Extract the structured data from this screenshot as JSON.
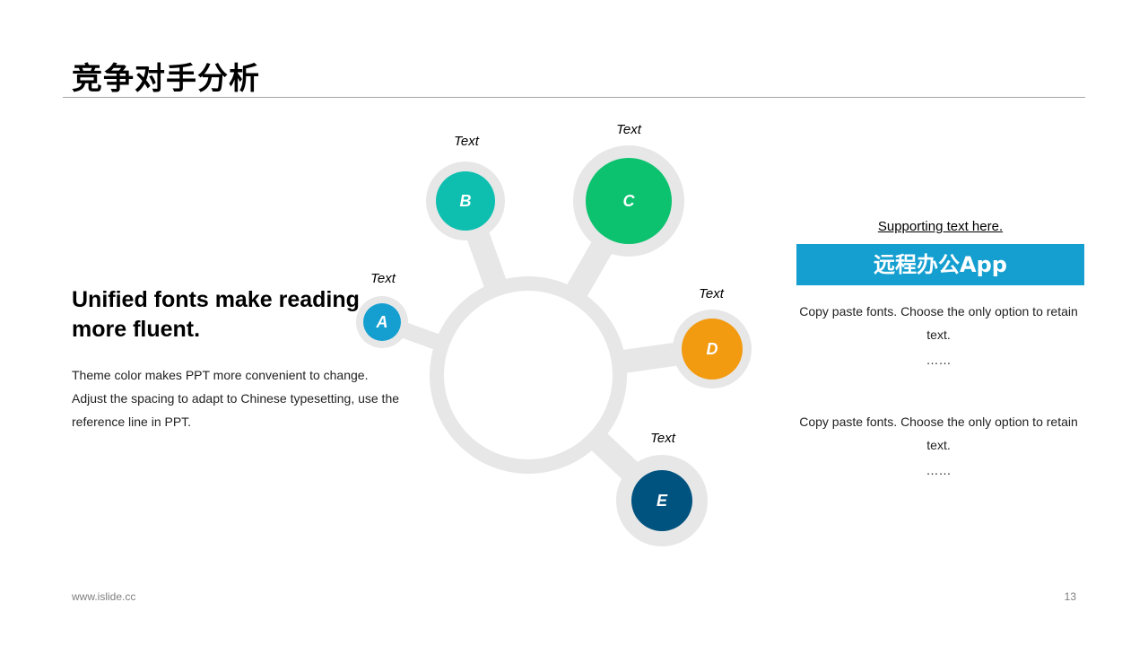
{
  "title": "竞争对手分析",
  "left": {
    "heading": "Unified fonts make reading more fluent.",
    "body": "Theme color makes PPT more convenient to change. Adjust the spacing to adapt to Chinese typesetting, use the reference line in PPT."
  },
  "diagram": {
    "ring_color": "#e7e7e7",
    "nodes": [
      {
        "letter": "A",
        "label": "Text",
        "color": "#149fd0"
      },
      {
        "letter": "B",
        "label": "Text",
        "color": "#0ebfb0"
      },
      {
        "letter": "C",
        "label": "Text",
        "color": "#0cc26e"
      },
      {
        "letter": "D",
        "label": "Text",
        "color": "#f29a10"
      },
      {
        "letter": "E",
        "label": "Text",
        "color": "#00527f"
      }
    ]
  },
  "right": {
    "supporting": "Supporting text here.",
    "banner": "远程办公App",
    "banner_color": "#149fd0",
    "para1": "Copy paste fonts. Choose the only option to retain text.",
    "ellipsis1": "……",
    "para2": "Copy paste fonts. Choose the only option to retain text.",
    "ellipsis2": "……"
  },
  "footer": {
    "url": "www.islide.cc",
    "page": "13"
  }
}
